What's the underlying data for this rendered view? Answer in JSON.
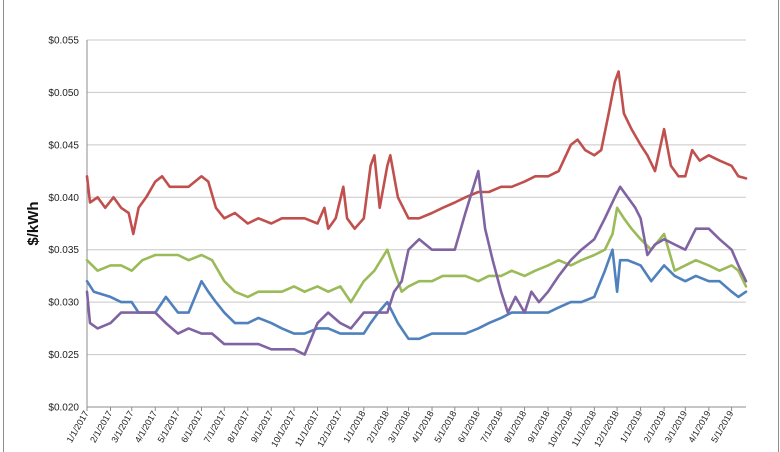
{
  "chart_data": {
    "type": "line",
    "title": "",
    "xlabel": "",
    "ylabel": "$/kWh",
    "ylim": [
      0.02,
      0.055
    ],
    "y_ticks": [
      0.02,
      0.025,
      0.03,
      0.035,
      0.04,
      0.045,
      0.05,
      0.055
    ],
    "y_tick_labels": [
      "$0.020",
      "$0.025",
      "$0.030",
      "$0.035",
      "$0.040",
      "$0.045",
      "$0.050",
      "$0.055"
    ],
    "x_tick_labels": [
      "1/1/2017",
      "2/1/2017",
      "3/1/2017",
      "4/1/2017",
      "5/1/2017",
      "6/1/2017",
      "7/1/2017",
      "8/1/2017",
      "9/1/2017",
      "10/1/2017",
      "11/1/2017",
      "12/1/2017",
      "1/1/2018",
      "2/1/2018",
      "3/1/2018",
      "4/1/2018",
      "5/1/2018",
      "6/1/2018",
      "7/1/2018",
      "8/1/2018",
      "9/1/2018",
      "10/1/2018",
      "11/1/2018",
      "12/1/2018",
      "1/1/2019",
      "2/1/2019",
      "3/1/2019",
      "4/1/2019",
      "5/1/2019"
    ],
    "x_range": [
      "1/1/2017",
      "5/20/2019"
    ],
    "grid": "horizontal",
    "legend": "none",
    "series": [
      {
        "color": "#c0504d",
        "points": [
          [
            "1/1/2017",
            0.042
          ],
          [
            "1/5/2017",
            0.0395
          ],
          [
            "1/15/2017",
            0.04
          ],
          [
            "1/25/2017",
            0.039
          ],
          [
            "2/5/2017",
            0.04
          ],
          [
            "2/15/2017",
            0.039
          ],
          [
            "2/25/2017",
            0.0385
          ],
          [
            "3/3/2017",
            0.0365
          ],
          [
            "3/10/2017",
            0.039
          ],
          [
            "3/20/2017",
            0.04
          ],
          [
            "4/1/2017",
            0.0415
          ],
          [
            "4/10/2017",
            0.042
          ],
          [
            "4/20/2017",
            0.041
          ],
          [
            "5/1/2017",
            0.041
          ],
          [
            "5/15/2017",
            0.041
          ],
          [
            "6/1/2017",
            0.042
          ],
          [
            "6/10/2017",
            0.0415
          ],
          [
            "6/20/2017",
            0.039
          ],
          [
            "7/1/2017",
            0.038
          ],
          [
            "7/15/2017",
            0.0385
          ],
          [
            "8/1/2017",
            0.0375
          ],
          [
            "8/15/2017",
            0.038
          ],
          [
            "9/1/2017",
            0.0375
          ],
          [
            "9/15/2017",
            0.038
          ],
          [
            "10/1/2017",
            0.038
          ],
          [
            "10/15/2017",
            0.038
          ],
          [
            "11/1/2017",
            0.0375
          ],
          [
            "11/10/2017",
            0.039
          ],
          [
            "11/15/2017",
            0.037
          ],
          [
            "11/25/2017",
            0.038
          ],
          [
            "12/5/2017",
            0.041
          ],
          [
            "12/10/2017",
            0.038
          ],
          [
            "12/20/2017",
            0.037
          ],
          [
            "1/1/2018",
            0.038
          ],
          [
            "1/10/2018",
            0.043
          ],
          [
            "1/15/2018",
            0.044
          ],
          [
            "1/22/2018",
            0.039
          ],
          [
            "2/1/2018",
            0.043
          ],
          [
            "2/5/2018",
            0.044
          ],
          [
            "2/15/2018",
            0.04
          ],
          [
            "3/1/2018",
            0.038
          ],
          [
            "3/15/2018",
            0.038
          ],
          [
            "4/1/2018",
            0.0385
          ],
          [
            "4/15/2018",
            0.039
          ],
          [
            "5/1/2018",
            0.0395
          ],
          [
            "5/15/2018",
            0.04
          ],
          [
            "6/1/2018",
            0.0405
          ],
          [
            "6/15/2018",
            0.0405
          ],
          [
            "7/1/2018",
            0.041
          ],
          [
            "7/15/2018",
            0.041
          ],
          [
            "8/1/2018",
            0.0415
          ],
          [
            "8/15/2018",
            0.042
          ],
          [
            "9/1/2018",
            0.042
          ],
          [
            "9/15/2018",
            0.0425
          ],
          [
            "10/1/2018",
            0.045
          ],
          [
            "10/10/2018",
            0.0455
          ],
          [
            "10/20/2018",
            0.0445
          ],
          [
            "11/1/2018",
            0.044
          ],
          [
            "11/10/2018",
            0.0445
          ],
          [
            "11/20/2018",
            0.048
          ],
          [
            "11/28/2018",
            0.051
          ],
          [
            "12/3/2018",
            0.052
          ],
          [
            "12/10/2018",
            0.048
          ],
          [
            "12/20/2018",
            0.0465
          ],
          [
            "1/1/2019",
            0.045
          ],
          [
            "1/10/2019",
            0.044
          ],
          [
            "1/20/2019",
            0.0425
          ],
          [
            "2/1/2019",
            0.0465
          ],
          [
            "2/10/2019",
            0.043
          ],
          [
            "2/20/2019",
            0.042
          ],
          [
            "3/1/2019",
            0.042
          ],
          [
            "3/10/2019",
            0.0445
          ],
          [
            "3/20/2019",
            0.0435
          ],
          [
            "4/1/2019",
            0.044
          ],
          [
            "4/15/2019",
            0.0435
          ],
          [
            "5/1/2019",
            0.043
          ],
          [
            "5/10/2019",
            0.042
          ],
          [
            "5/20/2019",
            0.0418
          ]
        ]
      },
      {
        "color": "#9bbb59",
        "points": [
          [
            "1/1/2017",
            0.034
          ],
          [
            "1/15/2017",
            0.033
          ],
          [
            "2/1/2017",
            0.0335
          ],
          [
            "2/15/2017",
            0.0335
          ],
          [
            "3/1/2017",
            0.033
          ],
          [
            "3/15/2017",
            0.034
          ],
          [
            "4/1/2017",
            0.0345
          ],
          [
            "4/15/2017",
            0.0345
          ],
          [
            "5/1/2017",
            0.0345
          ],
          [
            "5/15/2017",
            0.034
          ],
          [
            "6/1/2017",
            0.0345
          ],
          [
            "6/15/2017",
            0.034
          ],
          [
            "7/1/2017",
            0.032
          ],
          [
            "7/15/2017",
            0.031
          ],
          [
            "8/1/2017",
            0.0305
          ],
          [
            "8/15/2017",
            0.031
          ],
          [
            "9/1/2017",
            0.031
          ],
          [
            "9/15/2017",
            0.031
          ],
          [
            "10/1/2017",
            0.0315
          ],
          [
            "10/15/2017",
            0.031
          ],
          [
            "11/1/2017",
            0.0315
          ],
          [
            "11/15/2017",
            0.031
          ],
          [
            "12/1/2017",
            0.0315
          ],
          [
            "12/15/2017",
            0.03
          ],
          [
            "1/1/2018",
            0.032
          ],
          [
            "1/15/2018",
            0.033
          ],
          [
            "2/1/2018",
            0.035
          ],
          [
            "2/10/2018",
            0.033
          ],
          [
            "2/20/2018",
            0.031
          ],
          [
            "3/1/2018",
            0.0315
          ],
          [
            "3/15/2018",
            0.032
          ],
          [
            "4/1/2018",
            0.032
          ],
          [
            "4/15/2018",
            0.0325
          ],
          [
            "5/1/2018",
            0.0325
          ],
          [
            "5/15/2018",
            0.0325
          ],
          [
            "6/1/2018",
            0.032
          ],
          [
            "6/15/2018",
            0.0325
          ],
          [
            "7/1/2018",
            0.0325
          ],
          [
            "7/15/2018",
            0.033
          ],
          [
            "8/1/2018",
            0.0325
          ],
          [
            "8/15/2018",
            0.033
          ],
          [
            "9/1/2018",
            0.0335
          ],
          [
            "9/15/2018",
            0.034
          ],
          [
            "10/1/2018",
            0.0335
          ],
          [
            "10/15/2018",
            0.034
          ],
          [
            "11/1/2018",
            0.0345
          ],
          [
            "11/15/2018",
            0.035
          ],
          [
            "11/25/2018",
            0.0365
          ],
          [
            "12/1/2018",
            0.039
          ],
          [
            "12/10/2018",
            0.038
          ],
          [
            "12/20/2018",
            0.037
          ],
          [
            "1/1/2019",
            0.036
          ],
          [
            "1/15/2019",
            0.035
          ],
          [
            "2/1/2019",
            0.0365
          ],
          [
            "2/15/2019",
            0.033
          ],
          [
            "3/1/2019",
            0.0335
          ],
          [
            "3/15/2019",
            0.034
          ],
          [
            "4/1/2019",
            0.0335
          ],
          [
            "4/15/2019",
            0.033
          ],
          [
            "5/1/2019",
            0.0335
          ],
          [
            "5/10/2019",
            0.033
          ],
          [
            "5/20/2019",
            0.0315
          ]
        ]
      },
      {
        "color": "#4f81bd",
        "points": [
          [
            "1/1/2017",
            0.032
          ],
          [
            "1/10/2017",
            0.031
          ],
          [
            "2/1/2017",
            0.0305
          ],
          [
            "2/15/2017",
            0.03
          ],
          [
            "3/1/2017",
            0.03
          ],
          [
            "3/10/2017",
            0.029
          ],
          [
            "3/20/2017",
            0.029
          ],
          [
            "4/1/2017",
            0.029
          ],
          [
            "4/15/2017",
            0.0305
          ],
          [
            "5/1/2017",
            0.029
          ],
          [
            "5/15/2017",
            0.029
          ],
          [
            "6/1/2017",
            0.032
          ],
          [
            "6/10/2017",
            0.031
          ],
          [
            "6/20/2017",
            0.03
          ],
          [
            "7/1/2017",
            0.029
          ],
          [
            "7/15/2017",
            0.028
          ],
          [
            "8/1/2017",
            0.028
          ],
          [
            "8/15/2017",
            0.0285
          ],
          [
            "9/1/2017",
            0.028
          ],
          [
            "9/15/2017",
            0.0275
          ],
          [
            "10/1/2017",
            0.027
          ],
          [
            "10/15/2017",
            0.027
          ],
          [
            "11/1/2017",
            0.0275
          ],
          [
            "11/15/2017",
            0.0275
          ],
          [
            "12/1/2017",
            0.027
          ],
          [
            "12/15/2017",
            0.027
          ],
          [
            "1/1/2018",
            0.027
          ],
          [
            "1/10/2018",
            0.028
          ],
          [
            "1/20/2018",
            0.029
          ],
          [
            "2/1/2018",
            0.03
          ],
          [
            "2/15/2018",
            0.028
          ],
          [
            "3/1/2018",
            0.0265
          ],
          [
            "3/15/2018",
            0.0265
          ],
          [
            "4/1/2018",
            0.027
          ],
          [
            "4/15/2018",
            0.027
          ],
          [
            "5/1/2018",
            0.027
          ],
          [
            "5/15/2018",
            0.027
          ],
          [
            "6/1/2018",
            0.0275
          ],
          [
            "6/15/2018",
            0.028
          ],
          [
            "7/1/2018",
            0.0285
          ],
          [
            "7/15/2018",
            0.029
          ],
          [
            "8/1/2018",
            0.029
          ],
          [
            "8/15/2018",
            0.029
          ],
          [
            "9/1/2018",
            0.029
          ],
          [
            "9/15/2018",
            0.0295
          ],
          [
            "10/1/2018",
            0.03
          ],
          [
            "10/15/2018",
            0.03
          ],
          [
            "11/1/2018",
            0.0305
          ],
          [
            "11/15/2018",
            0.033
          ],
          [
            "11/25/2018",
            0.035
          ],
          [
            "12/1/2018",
            0.031
          ],
          [
            "12/5/2018",
            0.034
          ],
          [
            "12/15/2018",
            0.034
          ],
          [
            "1/1/2019",
            0.0335
          ],
          [
            "1/15/2019",
            0.032
          ],
          [
            "2/1/2019",
            0.0335
          ],
          [
            "2/15/2019",
            0.0325
          ],
          [
            "3/1/2019",
            0.032
          ],
          [
            "3/15/2019",
            0.0325
          ],
          [
            "4/1/2019",
            0.032
          ],
          [
            "4/15/2019",
            0.032
          ],
          [
            "5/1/2019",
            0.031
          ],
          [
            "5/10/2019",
            0.0305
          ],
          [
            "5/20/2019",
            0.031
          ]
        ]
      },
      {
        "color": "#8064a2",
        "points": [
          [
            "1/1/2017",
            0.031
          ],
          [
            "1/5/2017",
            0.028
          ],
          [
            "1/15/2017",
            0.0275
          ],
          [
            "2/1/2017",
            0.028
          ],
          [
            "2/15/2017",
            0.029
          ],
          [
            "3/1/2017",
            0.029
          ],
          [
            "3/15/2017",
            0.029
          ],
          [
            "4/1/2017",
            0.029
          ],
          [
            "4/15/2017",
            0.028
          ],
          [
            "5/1/2017",
            0.027
          ],
          [
            "5/15/2017",
            0.0275
          ],
          [
            "6/1/2017",
            0.027
          ],
          [
            "6/15/2017",
            0.027
          ],
          [
            "7/1/2017",
            0.026
          ],
          [
            "7/15/2017",
            0.026
          ],
          [
            "8/1/2017",
            0.026
          ],
          [
            "8/15/2017",
            0.026
          ],
          [
            "9/1/2017",
            0.0255
          ],
          [
            "9/15/2017",
            0.0255
          ],
          [
            "10/1/2017",
            0.0255
          ],
          [
            "10/15/2017",
            0.025
          ],
          [
            "11/1/2017",
            0.028
          ],
          [
            "11/15/2017",
            0.029
          ],
          [
            "12/1/2017",
            0.028
          ],
          [
            "12/15/2017",
            0.0275
          ],
          [
            "1/1/2018",
            0.029
          ],
          [
            "1/15/2018",
            0.029
          ],
          [
            "2/1/2018",
            0.029
          ],
          [
            "2/10/2018",
            0.031
          ],
          [
            "2/20/2018",
            0.032
          ],
          [
            "3/1/2018",
            0.035
          ],
          [
            "3/15/2018",
            0.036
          ],
          [
            "4/1/2018",
            0.035
          ],
          [
            "4/15/2018",
            0.035
          ],
          [
            "5/1/2018",
            0.035
          ],
          [
            "5/15/2018",
            0.0385
          ],
          [
            "6/1/2018",
            0.0425
          ],
          [
            "6/10/2018",
            0.037
          ],
          [
            "6/20/2018",
            0.034
          ],
          [
            "7/1/2018",
            0.031
          ],
          [
            "7/10/2018",
            0.029
          ],
          [
            "7/20/2018",
            0.0305
          ],
          [
            "8/1/2018",
            0.029
          ],
          [
            "8/10/2018",
            0.031
          ],
          [
            "8/20/2018",
            0.03
          ],
          [
            "9/1/2018",
            0.031
          ],
          [
            "9/15/2018",
            0.0325
          ],
          [
            "10/1/2018",
            0.034
          ],
          [
            "10/15/2018",
            0.035
          ],
          [
            "11/1/2018",
            0.036
          ],
          [
            "11/15/2018",
            0.038
          ],
          [
            "11/28/2018",
            0.04
          ],
          [
            "12/5/2018",
            0.041
          ],
          [
            "12/15/2018",
            0.04
          ],
          [
            "12/25/2018",
            0.039
          ],
          [
            "1/1/2019",
            0.038
          ],
          [
            "1/10/2019",
            0.0345
          ],
          [
            "1/20/2019",
            0.0355
          ],
          [
            "2/1/2019",
            0.036
          ],
          [
            "2/15/2019",
            0.0355
          ],
          [
            "3/1/2019",
            0.035
          ],
          [
            "3/15/2019",
            0.037
          ],
          [
            "4/1/2019",
            0.037
          ],
          [
            "4/15/2019",
            0.036
          ],
          [
            "5/1/2019",
            0.035
          ],
          [
            "5/10/2019",
            0.0335
          ],
          [
            "5/20/2019",
            0.032
          ]
        ]
      }
    ]
  }
}
